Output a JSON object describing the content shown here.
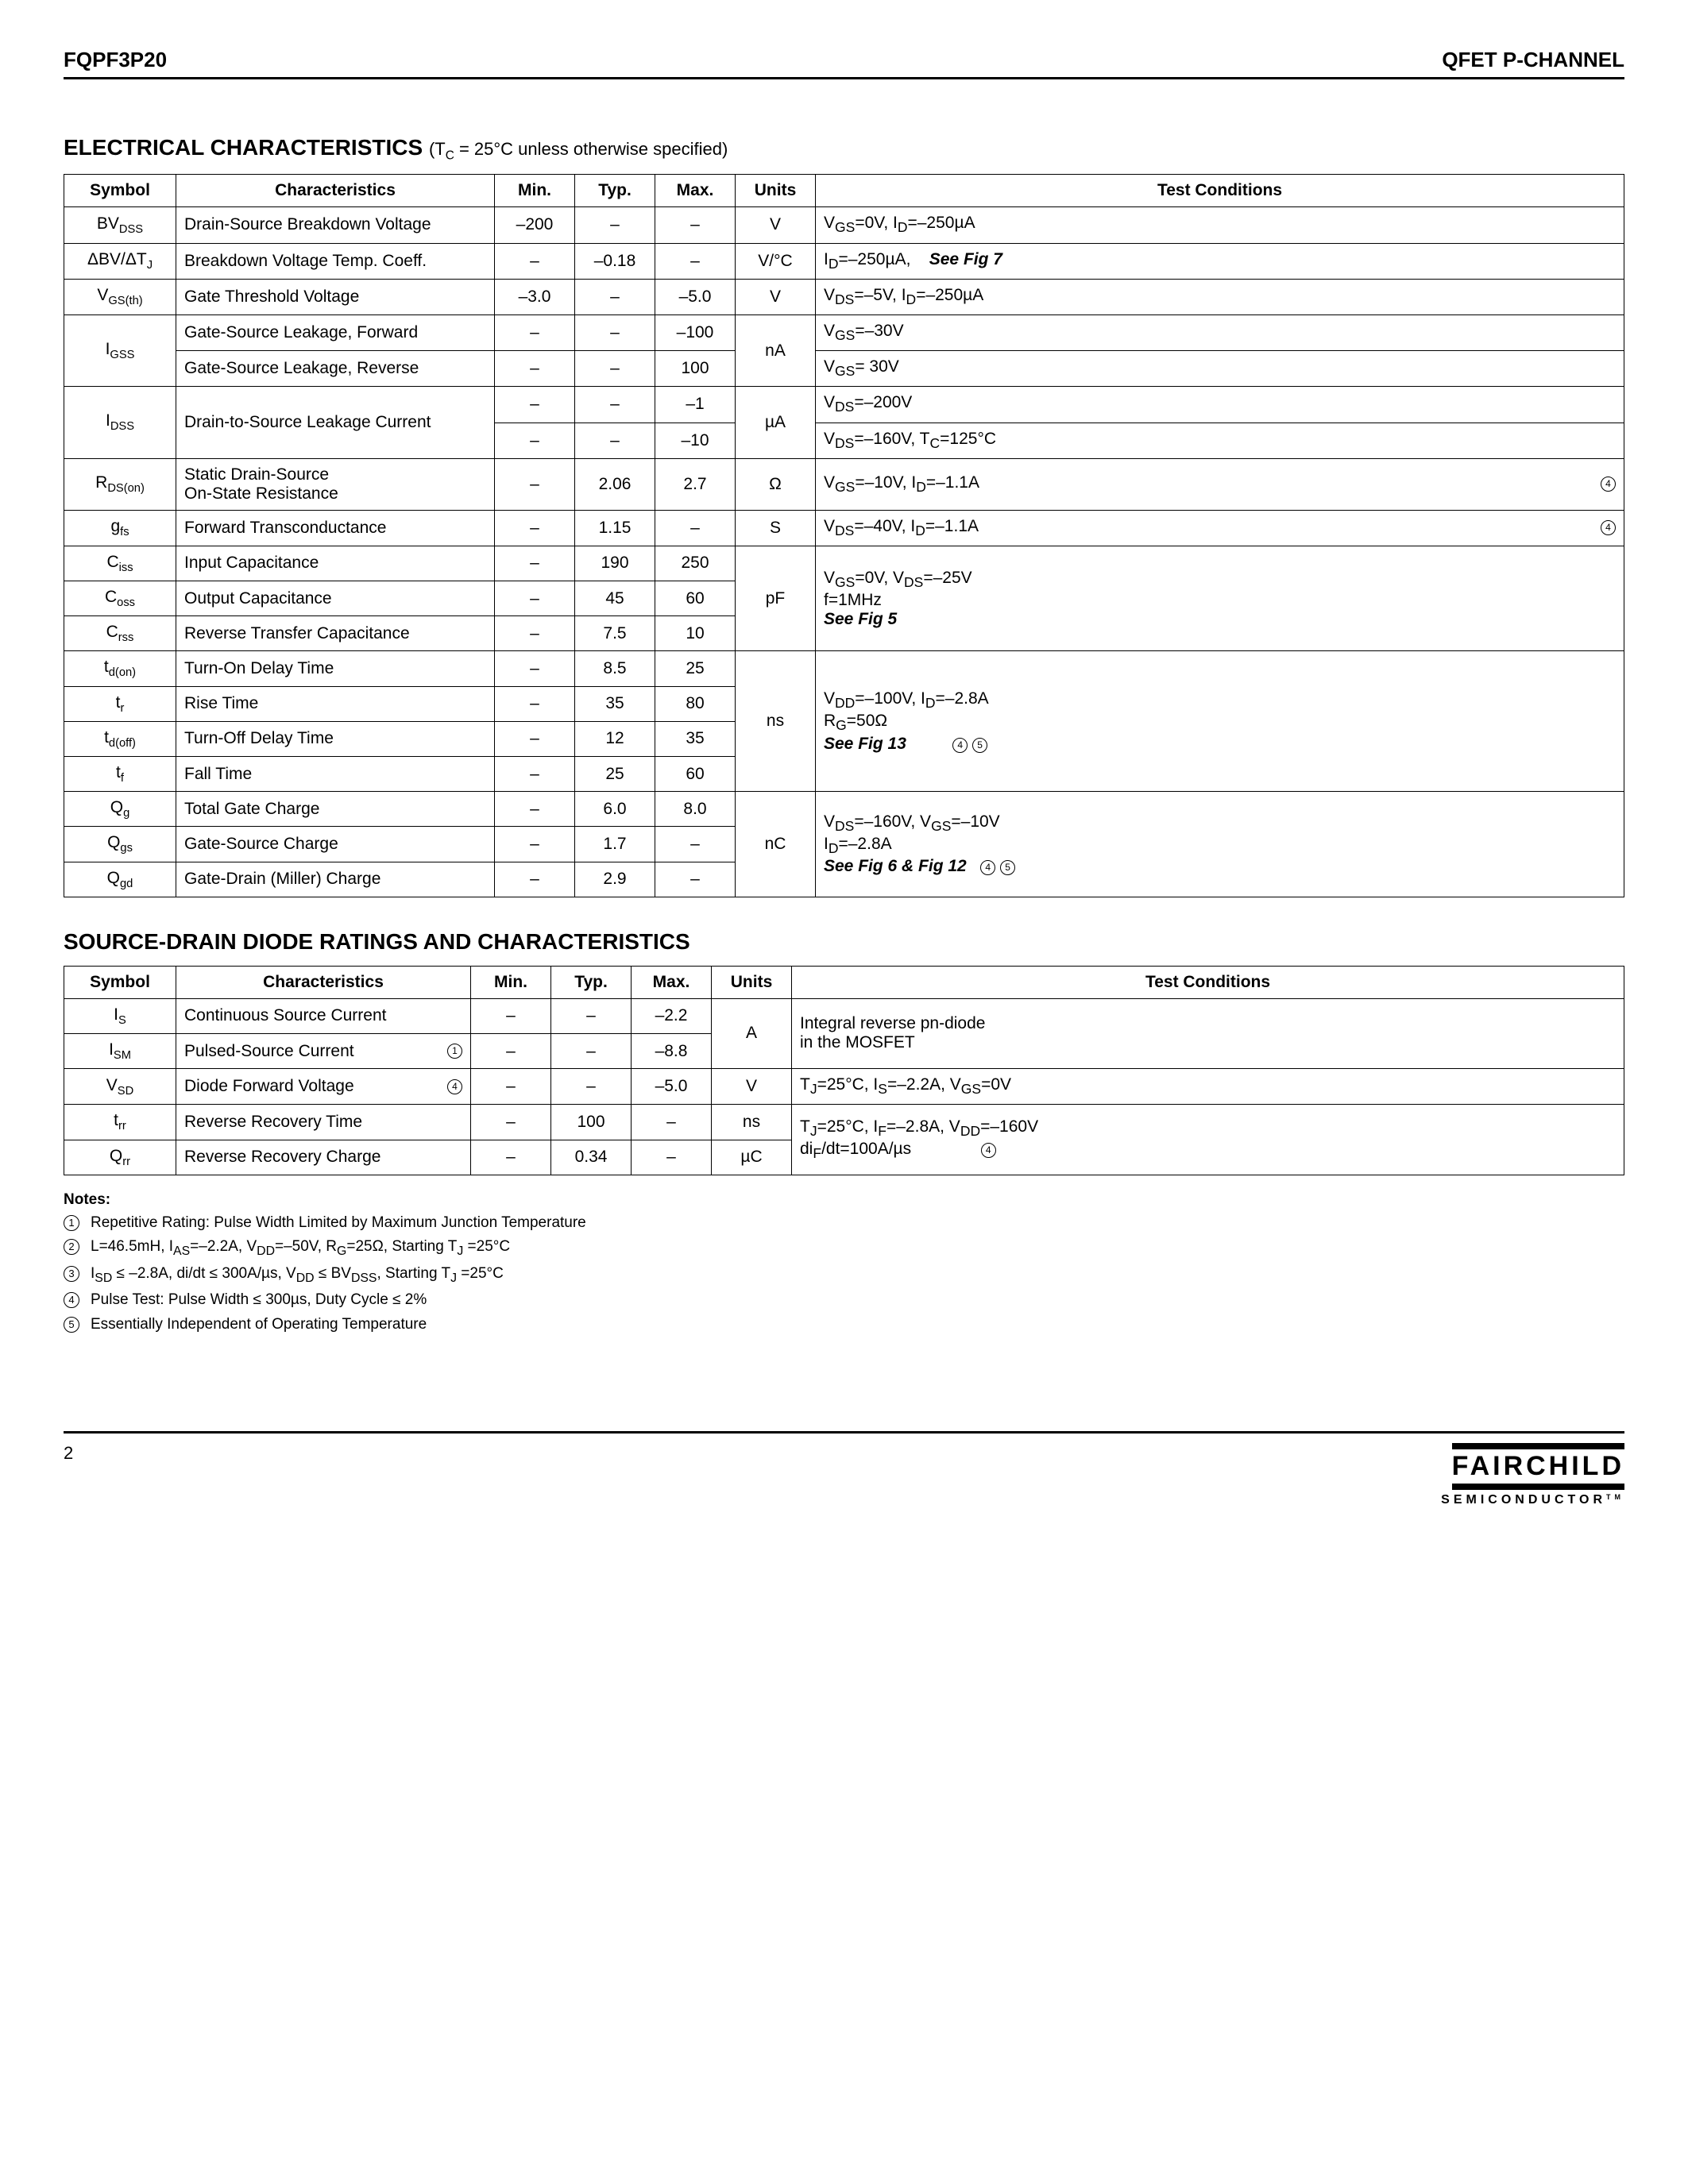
{
  "header": {
    "left": "FQPF3P20",
    "right": "QFET P-CHANNEL"
  },
  "section1": {
    "title": "ELECTRICAL CHARACTERISTICS",
    "subtitle_prefix": " (T",
    "subtitle_sub": "C",
    "subtitle_suffix": " = 25°C unless otherwise specified)"
  },
  "table_headers": {
    "symbol": "Symbol",
    "char": "Characteristics",
    "min": "Min.",
    "typ": "Typ.",
    "max": "Max.",
    "units": "Units",
    "cond": "Test Conditions"
  },
  "t1": {
    "r1": {
      "sym": "BV",
      "sub": "DSS",
      "char": "Drain-Source Breakdown Voltage",
      "min": "–200",
      "typ": "–",
      "max": "–",
      "unit": "V",
      "cond_html": "V<sub>GS</sub>=0V, I<sub>D</sub>=–250µA"
    },
    "r2": {
      "sym": "ΔBV/ΔT",
      "sub": "J",
      "char": "Breakdown Voltage Temp. Coeff.",
      "min": "–",
      "typ": "–0.18",
      "max": "–",
      "unit": "V/°C",
      "cond_html": "I<sub>D</sub>=–250µA, &nbsp;&nbsp;&nbsp;<span class='em'>See Fig 7</span>"
    },
    "r3": {
      "sym": "V",
      "sub": "GS(th)",
      "char": "Gate Threshold Voltage",
      "min": "–3.0",
      "typ": "–",
      "max": "–5.0",
      "unit": "V",
      "cond_html": "V<sub>DS</sub>=–5V, I<sub>D</sub>=–250µA"
    },
    "r4": {
      "sym": "I",
      "sub": "GSS",
      "char1": "Gate-Source Leakage, Forward",
      "min1": "–",
      "typ1": "–",
      "max1": "–100",
      "cond1_html": "V<sub>GS</sub>=–30V",
      "char2": "Gate-Source Leakage, Reverse",
      "min2": "–",
      "typ2": "–",
      "max2": "100",
      "unit": "nA",
      "cond2_html": "V<sub>GS</sub>= 30V"
    },
    "r5": {
      "sym": "I",
      "sub": "DSS",
      "char": "Drain-to-Source Leakage Current",
      "min1": "–",
      "typ1": "–",
      "max1": "–1",
      "cond1_html": "V<sub>DS</sub>=–200V",
      "min2": "–",
      "typ2": "–",
      "max2": "–10",
      "unit": "µA",
      "cond2_html": "V<sub>DS</sub>=–160V, T<sub>C</sub>=125°C"
    },
    "r6": {
      "sym": "R",
      "sub": "DS(on)",
      "char_html": "Static Drain-Source<br>On-State Resistance",
      "min": "–",
      "typ": "2.06",
      "max": "2.7",
      "unit": "Ω",
      "cond_html": "V<sub>GS</sub>=–10V, I<sub>D</sub>=–1.1A",
      "note": "4"
    },
    "r7": {
      "sym": "g",
      "sub": "fs",
      "char": "Forward Transconductance",
      "min": "–",
      "typ": "1.15",
      "max": "–",
      "unit": "S",
      "cond_html": "V<sub>DS</sub>=–40V, I<sub>D</sub>=–1.1A",
      "note": "4"
    },
    "cap": {
      "r8": {
        "sym": "C",
        "sub": "iss",
        "char": "Input Capacitance",
        "min": "–",
        "typ": "190",
        "max": "250"
      },
      "r9": {
        "sym": "C",
        "sub": "oss",
        "char": "Output Capacitance",
        "min": "–",
        "typ": "45",
        "max": "60"
      },
      "r10": {
        "sym": "C",
        "sub": "rss",
        "char": "Reverse Transfer Capacitance",
        "min": "–",
        "typ": "7.5",
        "max": "10"
      },
      "unit": "pF",
      "cond_html": "V<sub>GS</sub>=0V, V<sub>DS</sub>=–25V<br>f=1MHz<br><span class='em'>See Fig 5</span>"
    },
    "time": {
      "r11": {
        "sym": "t",
        "sub": "d(on)",
        "char": "Turn-On Delay Time",
        "min": "–",
        "typ": "8.5",
        "max": "25"
      },
      "r12": {
        "sym": "t",
        "sub": "r",
        "char": "Rise Time",
        "min": "–",
        "typ": "35",
        "max": "80"
      },
      "r13": {
        "sym": "t",
        "sub": "d(off)",
        "char": "Turn-Off Delay Time",
        "min": "–",
        "typ": "12",
        "max": "35"
      },
      "r14": {
        "sym": "t",
        "sub": "f",
        "char": "Fall Time",
        "min": "–",
        "typ": "25",
        "max": "60"
      },
      "unit": "ns",
      "cond_html": "V<sub>DD</sub>=–100V, I<sub>D</sub>=–2.8A<br>R<sub>G</sub>=50Ω<br><span class='em'>See Fig 13</span>&nbsp;&nbsp;&nbsp;&nbsp;&nbsp;&nbsp;&nbsp;&nbsp;&nbsp;&nbsp;<span class='circ-inline'>4</span>&nbsp;<span class='circ-inline'>5</span>"
    },
    "charge": {
      "r15": {
        "sym": "Q",
        "sub": "g",
        "char": "Total Gate Charge",
        "min": "–",
        "typ": "6.0",
        "max": "8.0"
      },
      "r16": {
        "sym": "Q",
        "sub": "gs",
        "char": "Gate-Source Charge",
        "min": "–",
        "typ": "1.7",
        "max": "–"
      },
      "r17": {
        "sym": "Q",
        "sub": "gd",
        "char": "Gate-Drain (Miller) Charge",
        "min": "–",
        "typ": "2.9",
        "max": "–"
      },
      "unit": "nC",
      "cond_html": "V<sub>DS</sub>=–160V, V<sub>GS</sub>=–10V<br>I<sub>D</sub>=–2.8A<br><span class='em'>See Fig 6 &amp; Fig 12</span>&nbsp;&nbsp;&nbsp;<span class='circ-inline'>4</span>&nbsp;<span class='circ-inline'>5</span>"
    }
  },
  "section2": {
    "title": "SOURCE-DRAIN DIODE RATINGS AND CHARACTERISTICS"
  },
  "t2": {
    "r1": {
      "sym": "I",
      "sub": "S",
      "char": "Continuous Source Current",
      "min": "–",
      "typ": "–",
      "max": "–2.2"
    },
    "r2": {
      "sym": "I",
      "sub": "SM",
      "char": "Pulsed-Source Current",
      "note": "1",
      "min": "–",
      "typ": "–",
      "max": "–8.8"
    },
    "unit12": "A",
    "cond12_html": "Integral reverse pn-diode<br>in the MOSFET",
    "r3": {
      "sym": "V",
      "sub": "SD",
      "char": "Diode Forward Voltage",
      "note": "4",
      "min": "–",
      "typ": "–",
      "max": "–5.0",
      "unit": "V",
      "cond_html": "T<sub>J</sub>=25°C, I<sub>S</sub>=–2.2A, V<sub>GS</sub>=0V"
    },
    "r4": {
      "sym": "t",
      "sub": "rr",
      "char": "Reverse Recovery Time",
      "min": "–",
      "typ": "100",
      "max": "–",
      "unit": "ns"
    },
    "r5": {
      "sym": "Q",
      "sub": "rr",
      "char": "Reverse Recovery Charge",
      "min": "–",
      "typ": "0.34",
      "max": "–",
      "unit": "µC"
    },
    "cond45_html": "T<sub>J</sub>=25°C, I<sub>F</sub>=–2.8A, V<sub>DD</sub>=–160V<br>di<sub>F</sub>/dt=100A/µs&nbsp;&nbsp;&nbsp;&nbsp;&nbsp;&nbsp;&nbsp;&nbsp;&nbsp;&nbsp;&nbsp;&nbsp;&nbsp;&nbsp;&nbsp;<span class='circ-inline'>4</span>"
  },
  "notes": {
    "title": "Notes:",
    "n1_html": "Repetitive Rating: Pulse Width Limited by Maximum Junction Temperature",
    "n2_html": "L=46.5mH, I<sub>AS</sub>=–2.2A, V<sub>DD</sub>=–50V, R<sub>G</sub>=25Ω, Starting T<sub>J</sub> =25°C",
    "n3_html": "I<sub>SD</sub> ≤ –2.8A, di/dt ≤ 300A/µs, V<sub>DD</sub> ≤ BV<sub>DSS</sub>, Starting T<sub>J</sub> =25°C",
    "n4_html": "Pulse Test: Pulse Width ≤ 300µs, Duty Cycle ≤ 2%",
    "n5_html": "Essentially Independent of Operating Temperature"
  },
  "footer": {
    "page": "2",
    "logo_main": "FAIRCHILD",
    "logo_sub": "SEMICONDUCTOR",
    "tm": "TM"
  }
}
